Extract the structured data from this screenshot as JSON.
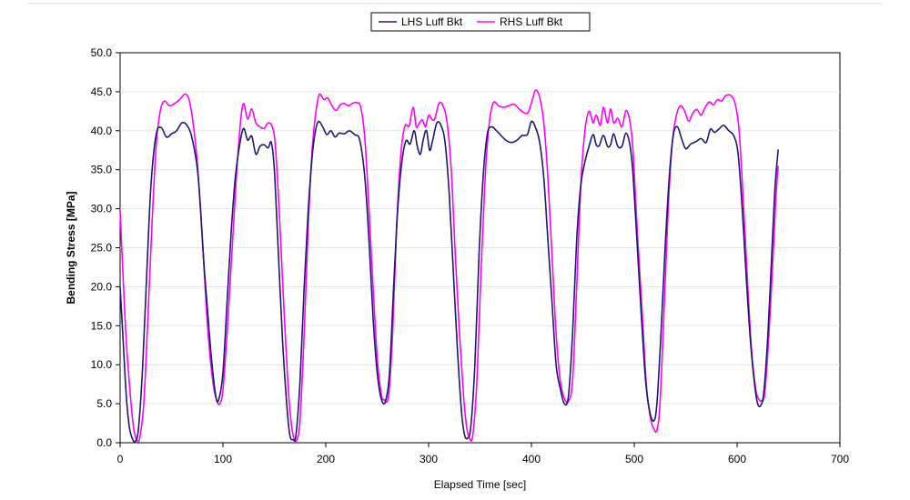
{
  "chart_data": {
    "type": "line",
    "title": "",
    "xlabel": "Elapsed Time [sec]",
    "ylabel": "Bending Stress [MPa]",
    "xlim": [
      0,
      700
    ],
    "ylim": [
      0,
      50
    ],
    "xticks": [
      0,
      100,
      200,
      300,
      400,
      500,
      600,
      700
    ],
    "xtick_labels": [
      "0",
      "100",
      "200",
      "300",
      "400",
      "500",
      "600",
      "700"
    ],
    "yticks": [
      0,
      5,
      10,
      15,
      20,
      25,
      30,
      35,
      40,
      45,
      50
    ],
    "ytick_labels": [
      "0.0",
      "5.0",
      "10.0",
      "15.0",
      "20.0",
      "25.0",
      "30.0",
      "35.0",
      "40.0",
      "45.0",
      "50.0"
    ],
    "grid": "horizontal",
    "legend_position": "top-center",
    "series": [
      {
        "name": "LHS Luff Bkt",
        "color": "#1a1a6e",
        "points": [
          [
            0,
            20
          ],
          [
            3,
            13
          ],
          [
            6,
            6
          ],
          [
            9,
            2
          ],
          [
            12,
            0.5
          ],
          [
            15,
            0.2
          ],
          [
            18,
            2
          ],
          [
            22,
            10
          ],
          [
            26,
            22
          ],
          [
            30,
            33
          ],
          [
            35,
            39.5
          ],
          [
            40,
            40.4
          ],
          [
            45,
            39.2
          ],
          [
            50,
            39.6
          ],
          [
            55,
            40
          ],
          [
            60,
            41
          ],
          [
            65,
            40.7
          ],
          [
            70,
            39
          ],
          [
            76,
            34
          ],
          [
            82,
            22
          ],
          [
            88,
            12
          ],
          [
            93,
            6
          ],
          [
            96,
            5.6
          ],
          [
            100,
            9
          ],
          [
            104,
            18
          ],
          [
            108,
            27
          ],
          [
            112,
            34
          ],
          [
            116,
            38
          ],
          [
            120,
            40.3
          ],
          [
            124,
            38.8
          ],
          [
            128,
            39.3
          ],
          [
            132,
            37
          ],
          [
            136,
            38
          ],
          [
            140,
            38.2
          ],
          [
            144,
            37.8
          ],
          [
            147,
            38.5
          ],
          [
            150,
            35
          ],
          [
            154,
            24
          ],
          [
            158,
            13
          ],
          [
            162,
            5
          ],
          [
            165,
            1
          ],
          [
            168,
            0.4
          ],
          [
            171,
            1
          ],
          [
            175,
            8
          ],
          [
            179,
            20
          ],
          [
            183,
            30
          ],
          [
            187,
            37
          ],
          [
            190,
            40
          ],
          [
            193,
            41.2
          ],
          [
            197,
            40.5
          ],
          [
            201,
            39.5
          ],
          [
            205,
            40
          ],
          [
            209,
            39.2
          ],
          [
            213,
            39.7
          ],
          [
            218,
            39.6
          ],
          [
            223,
            40
          ],
          [
            228,
            39.5
          ],
          [
            233,
            38.8
          ],
          [
            238,
            34
          ],
          [
            242,
            26
          ],
          [
            246,
            16
          ],
          [
            250,
            9
          ],
          [
            254,
            5.6
          ],
          [
            258,
            5.3
          ],
          [
            262,
            9
          ],
          [
            266,
            20
          ],
          [
            270,
            30
          ],
          [
            274,
            36
          ],
          [
            278,
            38.7
          ],
          [
            282,
            38.3
          ],
          [
            286,
            40
          ],
          [
            289,
            38
          ],
          [
            292,
            37
          ],
          [
            295,
            39
          ],
          [
            298,
            40
          ],
          [
            301,
            37.5
          ],
          [
            304,
            38.8
          ],
          [
            308,
            41
          ],
          [
            312,
            40.7
          ],
          [
            316,
            38.5
          ],
          [
            320,
            32
          ],
          [
            324,
            22
          ],
          [
            328,
            12
          ],
          [
            332,
            4
          ],
          [
            335,
            1
          ],
          [
            338,
            0.6
          ],
          [
            341,
            2
          ],
          [
            345,
            10
          ],
          [
            349,
            24
          ],
          [
            353,
            34
          ],
          [
            357,
            39.5
          ],
          [
            361,
            40.5
          ],
          [
            366,
            40
          ],
          [
            371,
            39.3
          ],
          [
            376,
            38.7
          ],
          [
            381,
            38.5
          ],
          [
            386,
            38.8
          ],
          [
            391,
            39.4
          ],
          [
            396,
            39.5
          ],
          [
            400,
            41.2
          ],
          [
            404,
            40.4
          ],
          [
            408,
            38.5
          ],
          [
            412,
            34
          ],
          [
            416,
            26
          ],
          [
            420,
            18
          ],
          [
            424,
            10
          ],
          [
            428,
            7
          ],
          [
            432,
            5
          ],
          [
            436,
            6
          ],
          [
            440,
            14
          ],
          [
            444,
            26
          ],
          [
            448,
            33
          ],
          [
            452,
            36
          ],
          [
            456,
            38
          ],
          [
            460,
            39.5
          ],
          [
            463,
            38.2
          ],
          [
            466,
            38.1
          ],
          [
            470,
            39.4
          ],
          [
            474,
            38
          ],
          [
            477,
            38.2
          ],
          [
            480,
            39.6
          ],
          [
            484,
            38
          ],
          [
            488,
            38
          ],
          [
            492,
            39.7
          ],
          [
            496,
            38
          ],
          [
            499,
            34
          ],
          [
            503,
            25
          ],
          [
            507,
            16
          ],
          [
            511,
            8
          ],
          [
            515,
            4
          ],
          [
            519,
            2.8
          ],
          [
            522,
            5
          ],
          [
            526,
            14
          ],
          [
            530,
            25
          ],
          [
            534,
            34
          ],
          [
            538,
            39.5
          ],
          [
            542,
            40.5
          ],
          [
            546,
            39
          ],
          [
            550,
            37.7
          ],
          [
            555,
            38.3
          ],
          [
            560,
            38.6
          ],
          [
            565,
            39
          ],
          [
            570,
            38.5
          ],
          [
            574,
            40.2
          ],
          [
            578,
            39.8
          ],
          [
            583,
            40.3
          ],
          [
            587,
            40.7
          ],
          [
            592,
            40
          ],
          [
            597,
            39.3
          ],
          [
            601,
            37
          ],
          [
            605,
            30
          ],
          [
            609,
            21
          ],
          [
            613,
            13
          ],
          [
            617,
            7.5
          ],
          [
            620,
            5
          ],
          [
            623,
            4.8
          ],
          [
            626,
            6.5
          ],
          [
            630,
            14
          ],
          [
            634,
            25
          ],
          [
            637,
            33
          ],
          [
            640,
            37.6
          ]
        ]
      },
      {
        "name": "RHS Luff Bkt",
        "color": "#ff00ff",
        "points": [
          [
            0,
            29.7
          ],
          [
            3,
            21
          ],
          [
            6,
            13
          ],
          [
            10,
            6
          ],
          [
            13,
            2
          ],
          [
            16,
            0.4
          ],
          [
            19,
            0.6
          ],
          [
            23,
            5
          ],
          [
            27,
            16
          ],
          [
            31,
            28
          ],
          [
            35,
            38
          ],
          [
            39,
            42.5
          ],
          [
            43,
            43.8
          ],
          [
            48,
            43.2
          ],
          [
            53,
            43.5
          ],
          [
            58,
            44
          ],
          [
            63,
            44.7
          ],
          [
            67,
            44
          ],
          [
            71,
            41
          ],
          [
            75,
            36
          ],
          [
            80,
            26
          ],
          [
            85,
            15
          ],
          [
            90,
            8
          ],
          [
            94,
            5.4
          ],
          [
            97,
            5
          ],
          [
            100,
            6.8
          ],
          [
            104,
            14
          ],
          [
            109,
            25
          ],
          [
            113,
            34
          ],
          [
            117,
            41
          ],
          [
            120,
            43.5
          ],
          [
            124,
            41.5
          ],
          [
            128,
            42.8
          ],
          [
            132,
            41
          ],
          [
            136,
            40.5
          ],
          [
            140,
            40.3
          ],
          [
            144,
            41
          ],
          [
            148,
            40.5
          ],
          [
            151,
            38
          ],
          [
            155,
            29
          ],
          [
            159,
            18
          ],
          [
            163,
            8
          ],
          [
            166,
            3
          ],
          [
            169,
            0.6
          ],
          [
            172,
            0.4
          ],
          [
            175,
            3
          ],
          [
            179,
            14
          ],
          [
            183,
            28
          ],
          [
            187,
            38
          ],
          [
            191,
            43
          ],
          [
            194,
            44.7
          ],
          [
            198,
            44
          ],
          [
            202,
            44.2
          ],
          [
            206,
            43.2
          ],
          [
            210,
            42.6
          ],
          [
            214,
            43.3
          ],
          [
            218,
            43.5
          ],
          [
            222,
            43.2
          ],
          [
            226,
            43.5
          ],
          [
            230,
            43.6
          ],
          [
            234,
            43
          ],
          [
            238,
            39
          ],
          [
            242,
            30
          ],
          [
            246,
            20
          ],
          [
            250,
            11
          ],
          [
            254,
            6.2
          ],
          [
            257,
            5.5
          ],
          [
            261,
            6
          ],
          [
            265,
            14
          ],
          [
            269,
            28
          ],
          [
            273,
            37
          ],
          [
            277,
            40.6
          ],
          [
            281,
            40.6
          ],
          [
            285,
            43
          ],
          [
            288,
            40.5
          ],
          [
            291,
            41
          ],
          [
            294,
            41.4
          ],
          [
            297,
            40.5
          ],
          [
            300,
            42
          ],
          [
            303,
            41.5
          ],
          [
            306,
            41.5
          ],
          [
            310,
            43.5
          ],
          [
            314,
            43.2
          ],
          [
            318,
            41
          ],
          [
            322,
            35
          ],
          [
            326,
            24
          ],
          [
            330,
            14
          ],
          [
            334,
            6
          ],
          [
            337,
            2
          ],
          [
            340,
            0.5
          ],
          [
            343,
            1
          ],
          [
            347,
            8
          ],
          [
            351,
            22
          ],
          [
            355,
            34
          ],
          [
            359,
            41
          ],
          [
            363,
            43.6
          ],
          [
            368,
            43.2
          ],
          [
            373,
            43
          ],
          [
            378,
            43.2
          ],
          [
            383,
            43.4
          ],
          [
            388,
            42.8
          ],
          [
            393,
            42.3
          ],
          [
            397,
            42.4
          ],
          [
            401,
            44
          ],
          [
            404,
            45.2
          ],
          [
            408,
            44.3
          ],
          [
            412,
            41
          ],
          [
            416,
            34
          ],
          [
            420,
            24
          ],
          [
            424,
            14
          ],
          [
            428,
            8
          ],
          [
            432,
            5.7
          ],
          [
            436,
            5.3
          ],
          [
            440,
            8
          ],
          [
            444,
            20
          ],
          [
            448,
            33
          ],
          [
            452,
            40
          ],
          [
            456,
            42.5
          ],
          [
            460,
            41
          ],
          [
            463,
            42
          ],
          [
            467,
            40.7
          ],
          [
            470,
            43
          ],
          [
            474,
            41
          ],
          [
            477,
            42.8
          ],
          [
            480,
            41
          ],
          [
            484,
            41.6
          ],
          [
            488,
            40.5
          ],
          [
            492,
            42.6
          ],
          [
            496,
            41
          ],
          [
            499,
            37
          ],
          [
            503,
            27
          ],
          [
            508,
            16
          ],
          [
            512,
            7
          ],
          [
            516,
            3
          ],
          [
            519,
            1.8
          ],
          [
            522,
            1.6
          ],
          [
            525,
            5
          ],
          [
            529,
            17
          ],
          [
            533,
            30
          ],
          [
            537,
            38.5
          ],
          [
            541,
            42
          ],
          [
            545,
            43.2
          ],
          [
            549,
            42.5
          ],
          [
            553,
            41.2
          ],
          [
            557,
            42.3
          ],
          [
            561,
            42.7
          ],
          [
            565,
            42
          ],
          [
            569,
            43
          ],
          [
            573,
            43.7
          ],
          [
            577,
            43.3
          ],
          [
            581,
            44
          ],
          [
            585,
            43.8
          ],
          [
            589,
            44.5
          ],
          [
            594,
            44.5
          ],
          [
            598,
            43.5
          ],
          [
            602,
            40
          ],
          [
            606,
            31
          ],
          [
            610,
            21
          ],
          [
            614,
            12
          ],
          [
            618,
            7
          ],
          [
            621,
            5.6
          ],
          [
            624,
            5.4
          ],
          [
            627,
            6.5
          ],
          [
            631,
            14
          ],
          [
            635,
            24
          ],
          [
            638,
            32
          ],
          [
            640,
            35.5
          ]
        ]
      }
    ]
  }
}
